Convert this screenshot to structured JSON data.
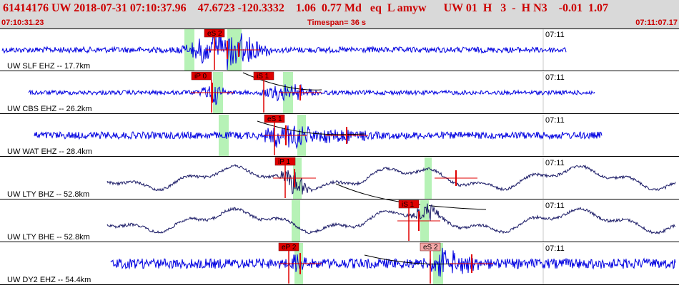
{
  "header": {
    "event_line": "61414176 UW 2018-07-31 07:10:37.96    47.6723 -120.3332    1.06  0.77 Md   eq  L amyw      UW 01  H   3  -  H N3    -0.01  1.07",
    "start_time": "07:10:31.23",
    "timespan": "Timespan=  36 s",
    "end_time": "07:11:07.17"
  },
  "colors": {
    "header_bg": "#d9d9d9",
    "header_text": "#cc0000",
    "trace_blue": "#0000e0",
    "trace_navy": "#1a1a66",
    "pick_red": "#e00000",
    "pick_box_light": "#f4a8a8",
    "window_green": "#b6f2b6",
    "grid": "#c8c8c8",
    "divider": "#000000"
  },
  "traces": [
    {
      "label": "UW SLF EHZ -- 17.7km",
      "minute_label": "07:11",
      "trace_color": "blue",
      "picks": [
        {
          "text": "eS 2",
          "style": "red"
        }
      ]
    },
    {
      "label": "UW CBS EHZ -- 26.2km",
      "minute_label": "07:11",
      "trace_color": "blue",
      "picks": [
        {
          "text": "iP 0",
          "style": "red"
        },
        {
          "text": "iS 1",
          "style": "red"
        }
      ]
    },
    {
      "label": "UW WAT EHZ -- 28.4km",
      "minute_label": "07:11",
      "trace_color": "blue",
      "picks": [
        {
          "text": "eS 1",
          "style": "red"
        }
      ]
    },
    {
      "label": "UW LTY BHZ -- 52.8km",
      "minute_label": "07:11",
      "trace_color": "navy",
      "picks": [
        {
          "text": "iP 1",
          "style": "red"
        }
      ]
    },
    {
      "label": "UW LTY BHE -- 52.8km",
      "minute_label": "07:11",
      "trace_color": "navy",
      "picks": [
        {
          "text": "iS 1",
          "style": "red"
        }
      ]
    },
    {
      "label": "UW DY2 EHZ -- 54.4km",
      "minute_label": "07:11",
      "trace_color": "blue",
      "picks": [
        {
          "text": "eP 2",
          "style": "red"
        },
        {
          "text": "eS 2",
          "style": "light"
        }
      ]
    }
  ]
}
